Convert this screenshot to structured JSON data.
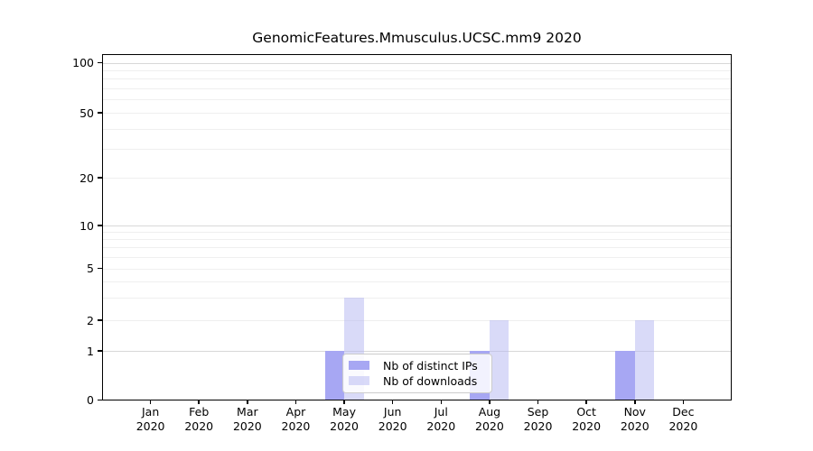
{
  "chart_data": {
    "type": "bar",
    "title": "GenomicFeatures.Mmusculus.UCSC.mm9 2020",
    "categories": [
      "Jan",
      "Feb",
      "Mar",
      "Apr",
      "May",
      "Jun",
      "Jul",
      "Aug",
      "Sep",
      "Oct",
      "Nov",
      "Dec"
    ],
    "year_label": "2020",
    "series": [
      {
        "name": "Nb of distinct IPs",
        "color": "#a7a7f3",
        "values": [
          0,
          0,
          0,
          0,
          1,
          0,
          0,
          1,
          0,
          0,
          1,
          0
        ]
      },
      {
        "name": "Nb of downloads",
        "color": "rgba(180,182,242,0.5)",
        "values": [
          0,
          0,
          0,
          0,
          3,
          0,
          0,
          2,
          0,
          0,
          2,
          0
        ]
      }
    ],
    "yscale": "log-like",
    "yticks": [
      0,
      1,
      2,
      5,
      10,
      20,
      50,
      100
    ],
    "minor_grid_values": [
      2,
      3,
      4,
      5,
      6,
      7,
      8,
      9,
      20,
      30,
      40,
      50,
      60,
      70,
      80,
      90
    ],
    "major_grid_values": [
      1,
      10,
      100
    ],
    "ylim": [
      0,
      115
    ],
    "xlabel": "",
    "ylabel": "",
    "grid": "horizontal major and minor, on",
    "legend_position": "inside lower center-left",
    "style_colors": {
      "axis": "#000000",
      "grid_major": "#d8d8d8",
      "grid_minor": "#efefef",
      "legend_border": "#cccccc",
      "background": "#ffffff"
    }
  }
}
